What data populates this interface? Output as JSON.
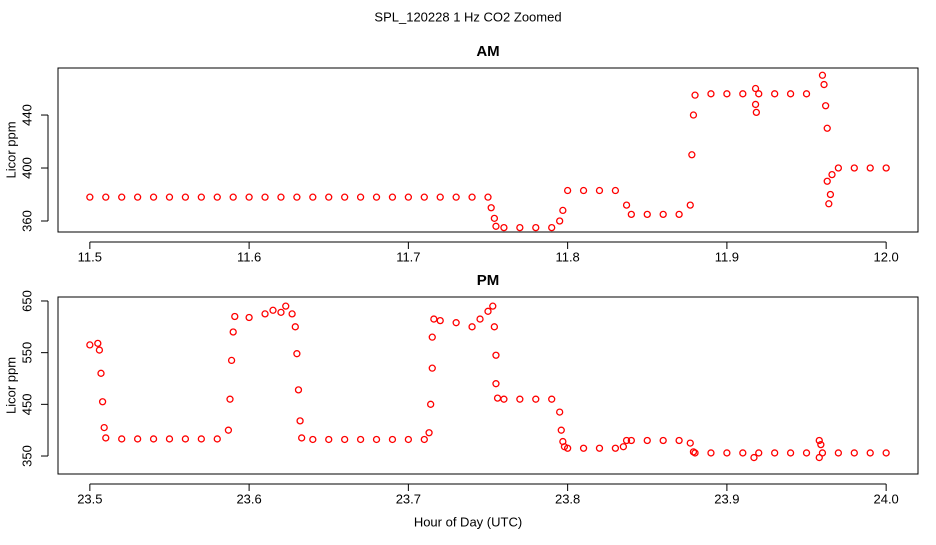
{
  "title": "SPL_120228  1 Hz CO2 Zoomed",
  "xlabel": "Hour of Day (UTC)",
  "chart_data": [
    {
      "type": "scatter",
      "title": "AM",
      "ylabel": "Licor ppm",
      "color": "#ff0000",
      "x": [
        11.5,
        11.51,
        11.52,
        11.53,
        11.54,
        11.55,
        11.56,
        11.57,
        11.58,
        11.59,
        11.6,
        11.61,
        11.62,
        11.63,
        11.64,
        11.65,
        11.66,
        11.67,
        11.68,
        11.69,
        11.7,
        11.71,
        11.72,
        11.73,
        11.74,
        11.75,
        11.752,
        11.754,
        11.755,
        11.76,
        11.77,
        11.78,
        11.79,
        11.795,
        11.797,
        11.8,
        11.81,
        11.82,
        11.83,
        11.837,
        11.84,
        11.85,
        11.86,
        11.87,
        11.877,
        11.878,
        11.879,
        11.88,
        11.89,
        11.9,
        11.91,
        11.918,
        11.918,
        11.9185,
        11.92,
        11.93,
        11.94,
        11.95,
        11.96,
        11.961,
        11.962,
        11.963,
        11.963,
        11.964,
        11.965,
        11.966,
        11.97,
        11.98,
        11.99,
        12.0
      ],
      "values": [
        378,
        378,
        378,
        378,
        378,
        378,
        378,
        378,
        378,
        378,
        378,
        378,
        378,
        378,
        378,
        378,
        378,
        378,
        378,
        378,
        378,
        378,
        378,
        378,
        378,
        378,
        370,
        362,
        356,
        355,
        355,
        355,
        355,
        360,
        368,
        383,
        383,
        383,
        383,
        372,
        365,
        365,
        365,
        365,
        372,
        410,
        440,
        455,
        456,
        456,
        456,
        448,
        460,
        442,
        456,
        456,
        456,
        456,
        470,
        463,
        447,
        430,
        390,
        373,
        380,
        395,
        400,
        400,
        400,
        400
      ],
      "xlim": [
        11.48,
        12.02
      ],
      "ylim": [
        351.7,
        475.5
      ],
      "xticks": [
        11.5,
        11.6,
        11.7,
        11.8,
        11.9,
        {
          "value": 12,
          "label": "12.0"
        }
      ],
      "yticks": [
        360,
        400,
        440
      ]
    },
    {
      "type": "scatter",
      "title": "PM",
      "ylabel": "Licor ppm",
      "color": "#ff0000",
      "x": [
        23.5,
        23.505,
        23.506,
        23.507,
        23.508,
        23.509,
        23.51,
        23.52,
        23.53,
        23.54,
        23.55,
        23.56,
        23.57,
        23.58,
        23.587,
        23.588,
        23.589,
        23.59,
        23.591,
        23.6,
        23.61,
        23.615,
        23.62,
        23.623,
        23.627,
        23.629,
        23.63,
        23.631,
        23.632,
        23.633,
        23.64,
        23.65,
        23.66,
        23.67,
        23.68,
        23.69,
        23.7,
        23.71,
        23.713,
        23.714,
        23.715,
        23.715,
        23.716,
        23.72,
        23.73,
        23.74,
        23.745,
        23.75,
        23.753,
        23.754,
        23.755,
        23.755,
        23.756,
        23.76,
        23.77,
        23.78,
        23.79,
        23.795,
        23.796,
        23.797,
        23.798,
        23.8,
        23.81,
        23.82,
        23.83,
        23.835,
        23.837,
        23.84,
        23.85,
        23.86,
        23.87,
        23.877,
        23.879,
        23.88,
        23.89,
        23.9,
        23.91,
        23.917,
        23.92,
        23.93,
        23.94,
        23.95,
        23.958,
        23.958,
        23.959,
        23.96,
        23.97,
        23.98,
        23.99,
        24.0
      ],
      "values": [
        565,
        568,
        555,
        510,
        455,
        405,
        385,
        383,
        383,
        383,
        383,
        383,
        383,
        383,
        400,
        460,
        535,
        590,
        620,
        618,
        625,
        632,
        628,
        640,
        625,
        600,
        548,
        478,
        418,
        385,
        382,
        382,
        382,
        382,
        382,
        382,
        382,
        382,
        395,
        450,
        520,
        580,
        615,
        612,
        608,
        600,
        615,
        630,
        640,
        600,
        545,
        490,
        462,
        460,
        460,
        460,
        460,
        435,
        400,
        378,
        368,
        365,
        365,
        365,
        365,
        368,
        380,
        380,
        380,
        380,
        380,
        375,
        358,
        356,
        356,
        356,
        356,
        347,
        356,
        356,
        356,
        356,
        380,
        347,
        372,
        356,
        356,
        356,
        356,
        356
      ],
      "xlim": [
        23.48,
        24.02
      ],
      "ylim": [
        315.2,
        657.7
      ],
      "xticks": [
        23.5,
        23.6,
        23.7,
        23.8,
        23.9,
        {
          "value": 24,
          "label": "24.0"
        }
      ],
      "yticks": [
        350,
        450,
        550,
        650
      ]
    }
  ]
}
